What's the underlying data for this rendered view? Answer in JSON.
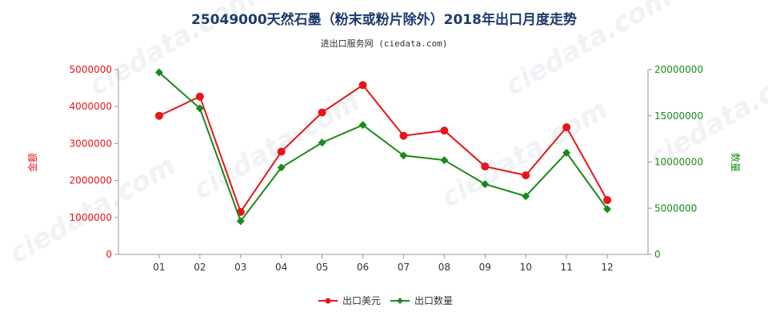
{
  "chart_data": {
    "type": "line",
    "title": "25049000天然石墨（粉末或粉片除外）2018年出口月度走势",
    "subtitle": "进出口服务网 (ciedata.com)",
    "categories": [
      "01",
      "02",
      "03",
      "04",
      "05",
      "06",
      "07",
      "08",
      "09",
      "10",
      "11",
      "12"
    ],
    "y_left": {
      "label": "金额",
      "range": [
        0,
        5000000
      ],
      "ticks": [
        "0",
        "1000000",
        "2000000",
        "3000000",
        "4000000",
        "5000000"
      ],
      "color": "#e8151b"
    },
    "y_right": {
      "label": "数量",
      "range": [
        0,
        20000000
      ],
      "ticks": [
        "0",
        "5000000",
        "10000000",
        "15000000",
        "20000000"
      ],
      "color": "#1a8a1a"
    },
    "series": [
      {
        "name": "出口美元",
        "axis": "left",
        "color": "#e8151b",
        "values": [
          3750000,
          4270000,
          1150000,
          2780000,
          3840000,
          4580000,
          3210000,
          3350000,
          2380000,
          2140000,
          3440000,
          1470000
        ]
      },
      {
        "name": "出口数量",
        "axis": "right",
        "color": "#1a8a1a",
        "values": [
          19700000,
          15800000,
          3600000,
          9400000,
          12100000,
          14000000,
          10700000,
          10200000,
          7600000,
          6300000,
          11000000,
          4900000
        ]
      }
    ],
    "legend_position": "bottom-center",
    "grid": false
  }
}
